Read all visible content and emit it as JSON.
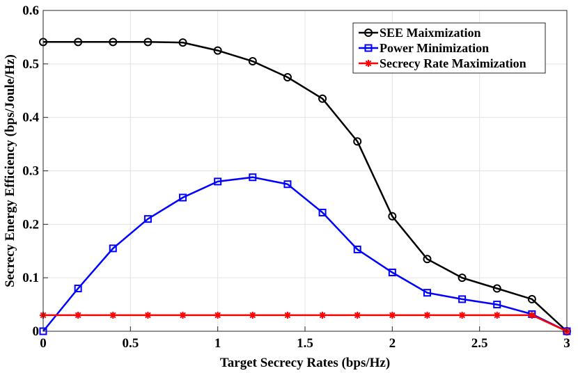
{
  "chart_data": {
    "type": "line",
    "xlabel": "Target Secrecy Rates (bps/Hz)",
    "ylabel": "Secrecy Energy Efficiency (bps/Joule/Hz)",
    "xlim": [
      0,
      3
    ],
    "ylim": [
      0,
      0.6
    ],
    "xticks": [
      "0",
      "0.5",
      "1",
      "1.5",
      "2",
      "2.5",
      "3"
    ],
    "yticks": [
      "0",
      "0.1",
      "0.2",
      "0.3",
      "0.4",
      "0.5",
      "0.6"
    ],
    "grid": true,
    "legend_position": "top-right",
    "x": [
      0,
      0.2,
      0.4,
      0.6,
      0.8,
      1.0,
      1.2,
      1.4,
      1.6,
      1.8,
      2.0,
      2.2,
      2.4,
      2.6,
      2.8,
      3.0
    ],
    "series": [
      {
        "name": "SEE Maixmization",
        "color": "#000000",
        "marker": "circle",
        "values": [
          0.541,
          0.541,
          0.541,
          0.541,
          0.54,
          0.525,
          0.505,
          0.475,
          0.435,
          0.355,
          0.215,
          0.135,
          0.1,
          0.08,
          0.06,
          0.0
        ]
      },
      {
        "name": "Power Minimization",
        "color": "#0000ff",
        "marker": "square",
        "values": [
          0.0,
          0.08,
          0.155,
          0.21,
          0.25,
          0.28,
          0.288,
          0.275,
          0.222,
          0.153,
          0.11,
          0.072,
          0.06,
          0.05,
          0.032,
          0.0
        ]
      },
      {
        "name": "Secrecy Rate Maximization",
        "color": "#ff0000",
        "marker": "star",
        "values": [
          0.03,
          0.03,
          0.03,
          0.03,
          0.03,
          0.03,
          0.03,
          0.03,
          0.03,
          0.03,
          0.03,
          0.03,
          0.03,
          0.03,
          0.03,
          0.0
        ]
      }
    ]
  }
}
